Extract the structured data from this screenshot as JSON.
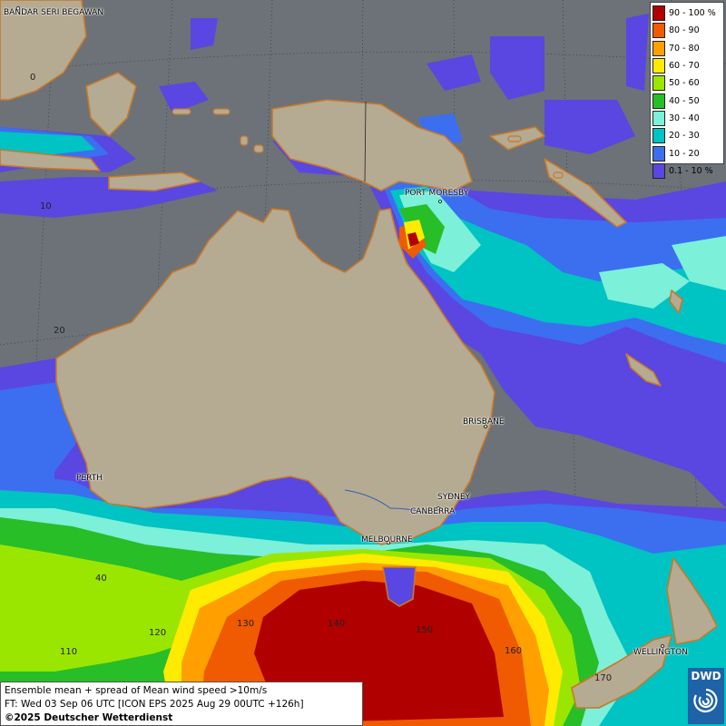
{
  "map": {
    "cities": [
      {
        "name": "BANDAR SERI BEGAWAN"
      },
      {
        "name": "PORT MORESBY"
      },
      {
        "name": "BRISBANE"
      },
      {
        "name": "PERTH"
      },
      {
        "name": "SYDNEY"
      },
      {
        "name": "CANBERRA"
      },
      {
        "name": "MELBOURNE"
      },
      {
        "name": "WELLINGTON"
      }
    ],
    "latitude_labels": [
      "0",
      "10",
      "20",
      "40"
    ],
    "longitude_labels": [
      "110",
      "120",
      "130",
      "140",
      "150",
      "160",
      "170"
    ]
  },
  "legend": {
    "entries": [
      {
        "label": "90 - 100 %",
        "color": "#b00000"
      },
      {
        "label": "80 - 90",
        "color": "#f05a00"
      },
      {
        "label": "70 - 80",
        "color": "#ffa000"
      },
      {
        "label": "60 - 70",
        "color": "#ffeb00"
      },
      {
        "label": "50 - 60",
        "color": "#9be600"
      },
      {
        "label": "40 - 50",
        "color": "#28be28"
      },
      {
        "label": "30 - 40",
        "color": "#7cf0d8"
      },
      {
        "label": "20 - 30",
        "color": "#00c3c3"
      },
      {
        "label": "10 - 20",
        "color": "#3c6ef0"
      },
      {
        "label": "0.1 - 10 %",
        "color": "#5a46e1"
      }
    ]
  },
  "info": {
    "line1": "Ensemble mean + spread of Mean wind speed >10m/s",
    "line2": "FT: Wed 03 Sep 06 UTC [ICON EPS 2025 Aug 29 00UTC +126h]",
    "copyright": "©2025 Deutscher Wetterdienst"
  },
  "logo": {
    "text": "DWD"
  },
  "colors": {
    "ocean": "#6c7278",
    "land": "#b5aa92",
    "coast": "#c87828"
  }
}
